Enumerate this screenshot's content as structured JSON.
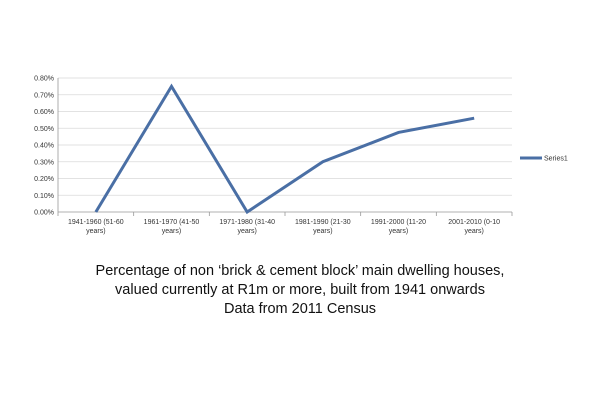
{
  "chart_data": {
    "type": "line",
    "title": "",
    "xlabel": "",
    "ylabel": "",
    "categories": [
      [
        "1941-1960 (51-60",
        "years)"
      ],
      [
        "1961-1970 (41-50",
        "years)"
      ],
      [
        "1971-1980 (31-40",
        "years)"
      ],
      [
        "1981-1990 (21-30",
        "years)"
      ],
      [
        "1991-2000 (11-20",
        "years)"
      ],
      [
        "2001-2010 (0-10",
        "years)"
      ]
    ],
    "series": [
      {
        "name": "Series1",
        "values": [
          0.0,
          0.75,
          0.0,
          0.3,
          0.475,
          0.56
        ],
        "color": "#4a6fa5"
      }
    ],
    "ylim": [
      0,
      0.8
    ],
    "yticks": [
      0,
      0.1,
      0.2,
      0.3,
      0.4,
      0.5,
      0.6,
      0.7,
      0.8
    ],
    "ytick_labels": [
      "0.00%",
      "0.10%",
      "0.20%",
      "0.30%",
      "0.40%",
      "0.50%",
      "0.60%",
      "0.70%",
      "0.80%"
    ],
    "grid": true,
    "legend_position": "right"
  },
  "caption": {
    "line1": "Percentage of non ‘brick & cement block’ main dwelling houses,",
    "line2": "valued currently at R1m or more, built from 1941 onwards",
    "line3": "Data from 2011 Census"
  }
}
